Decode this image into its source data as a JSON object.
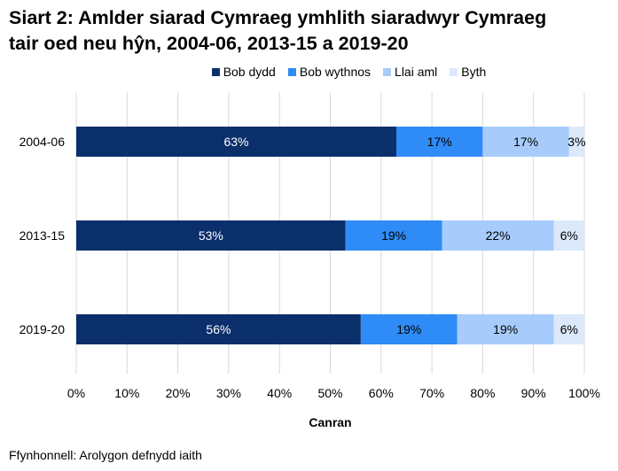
{
  "chart_data": {
    "type": "bar",
    "orientation": "horizontal",
    "stacked": true,
    "title": "Siart 2: Amlder siarad Cymraeg ymhlith siaradwyr Cymraeg tair oed neu hŷn, 2004-06, 2013-15 a 2019-20",
    "title_lines": [
      "Siart 2: Amlder siarad Cymraeg ymhlith siaradwyr Cymraeg",
      "tair oed neu hŷn, 2004-06, 2013-15 a 2019-20"
    ],
    "categories": [
      "2004-06",
      "2013-15",
      "2019-20"
    ],
    "series": [
      {
        "name": "Bob dydd",
        "color": "#0B2F6B",
        "values": [
          63,
          53,
          56
        ]
      },
      {
        "name": "Bob wythnos",
        "color": "#2F8BF5",
        "values": [
          17,
          19,
          19
        ]
      },
      {
        "name": "Llai aml",
        "color": "#A7CBFB",
        "values": [
          17,
          22,
          19
        ]
      },
      {
        "name": "Byth",
        "color": "#DCE9FB",
        "values": [
          3,
          6,
          6
        ]
      }
    ],
    "xlabel": "Canran",
    "xlim": [
      0,
      100
    ],
    "xticks": [
      "0%",
      "10%",
      "20%",
      "30%",
      "40%",
      "50%",
      "60%",
      "70%",
      "80%",
      "90%",
      "100%"
    ],
    "grid": true,
    "legend": "top"
  },
  "source": "Ffynhonnell: Arolygon defnydd iaith"
}
